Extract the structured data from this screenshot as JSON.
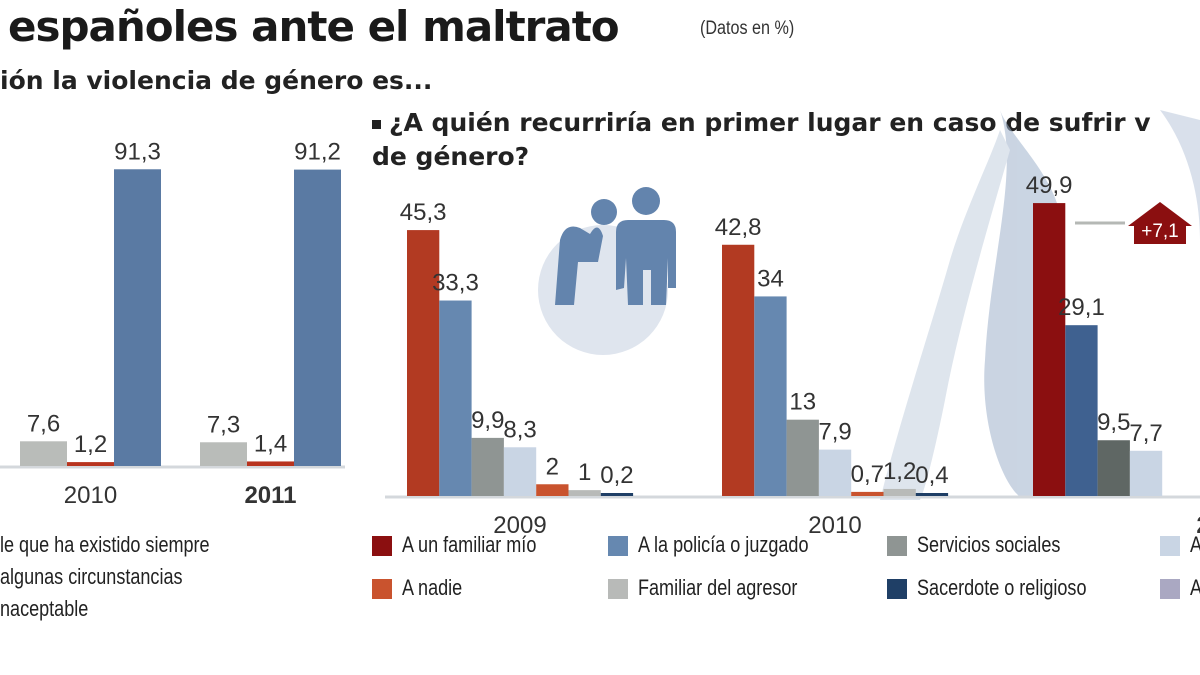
{
  "header": {
    "title": "españoles ante el maltrato",
    "units": "(Datos en %)",
    "left_question": "ión la violencia de género es...",
    "right_question_line1": "¿A quién recurriría en primer lugar en caso de sufrir v",
    "right_question_line2": "de género?"
  },
  "chart_data": [
    {
      "type": "bar",
      "categories": [
        "2010",
        "2011"
      ],
      "highlight_category": "2011",
      "series": [
        {
          "name": "le que ha existido siempre",
          "color": "#b9bcb9",
          "values": [
            7.6,
            7.3
          ]
        },
        {
          "name": "algunas circunstancias",
          "color": "#b8341f",
          "values": [
            1.2,
            1.4
          ]
        },
        {
          "name": "naceptable",
          "color": "#5a7aa3",
          "values": [
            91.3,
            91.2
          ]
        }
      ],
      "data_labels": [
        [
          "7,6",
          "7,3"
        ],
        [
          "1,2",
          "1,4"
        ],
        [
          "91,3",
          "91,2"
        ]
      ],
      "ylim": [
        0,
        100
      ]
    },
    {
      "type": "bar",
      "categories": [
        "2009",
        "2010",
        "2"
      ],
      "highlight_category": "2",
      "series": [
        {
          "name": "A un familiar mío",
          "color": "#8b0f10",
          "values": [
            45.3,
            42.8,
            49.9
          ]
        },
        {
          "name": "A la policía o juzgado",
          "color": "#6688b0",
          "values": [
            33.3,
            34,
            29.1
          ]
        },
        {
          "name": "Servicios sociales",
          "color": "#8f9593",
          "values": [
            9.9,
            13,
            9.5
          ]
        },
        {
          "name": "A",
          "color": "#c9d5e4",
          "values": [
            8.3,
            7.9,
            7.7
          ]
        },
        {
          "name": "A nadie",
          "color": "#c9532e",
          "values": [
            2,
            0.7,
            null
          ]
        },
        {
          "name": "Familiar del agresor",
          "color": "#b8bab8",
          "values": [
            1,
            1.2,
            null
          ]
        },
        {
          "name": "Sacerdote o religioso",
          "color": "#1f3f66",
          "values": [
            0.2,
            0.4,
            null
          ]
        },
        {
          "name": "A",
          "color": "#aaa8c2",
          "values": [
            null,
            null,
            null
          ]
        }
      ],
      "data_labels": [
        [
          "45,3",
          "42,8",
          "49,9"
        ],
        [
          "33,3",
          "34",
          "29,1"
        ],
        [
          "9,9",
          "13",
          "9,5"
        ],
        [
          "8,3",
          "7,9",
          "7,7"
        ],
        [
          "2",
          "0,7",
          ""
        ],
        [
          "1",
          "1,2",
          ""
        ],
        [
          "0,2",
          "0,4",
          ""
        ]
      ],
      "annotation": "+7,1",
      "ylim": [
        0,
        50
      ]
    }
  ],
  "colors": {
    "first_2009_2010": "#b23a22",
    "first_2011": "#8b0f10",
    "policia_2011": "#3f6190",
    "servicios_2011": "#5f6764"
  },
  "icons": [
    "two-people-icon",
    "hand-background-icon",
    "up-arrow-badge-icon"
  ]
}
